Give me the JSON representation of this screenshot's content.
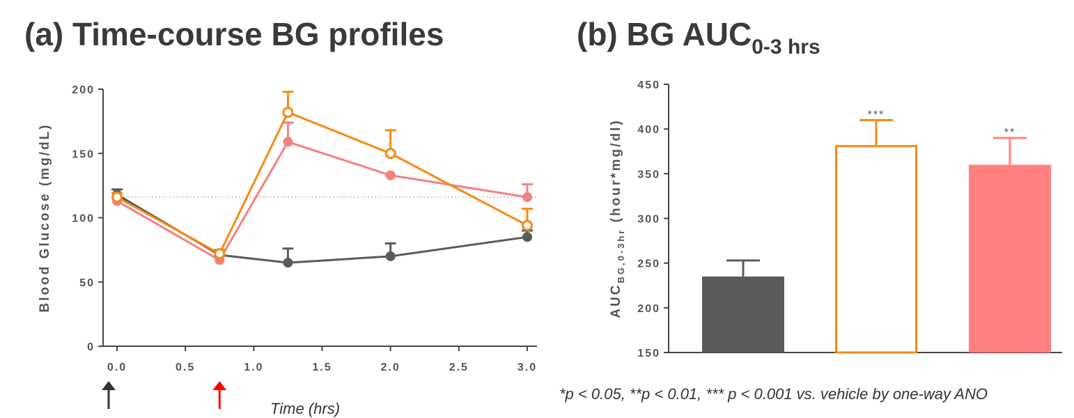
{
  "titles": {
    "a": "(a) Time-course BG profiles",
    "b_main": "(b) BG AUC",
    "b_sub": "0-3 hrs"
  },
  "footnote": "*p < 0.05, **p < 0.01, *** p < 0.001 vs. vehicle by one-way ANO",
  "chart_data": [
    {
      "type": "line",
      "title": "(a) Time-course BG profiles",
      "xlabel": "Time (hrs)",
      "ylabel": "Blood Glucose (mg/dL)",
      "xlim": [
        0,
        3
      ],
      "ylim": [
        0,
        200
      ],
      "xticks": [
        "0.0",
        "0.5",
        "1.0",
        "1.5",
        "2.0",
        "2.5",
        "3.0"
      ],
      "yticks": [
        "0",
        "50",
        "100",
        "150",
        "200"
      ],
      "reference_line_y": 116,
      "series": [
        {
          "color": "#5a5a5a",
          "marker": "filled",
          "x": [
            0,
            0.75,
            1.25,
            2.0,
            3.0
          ],
          "y": [
            118,
            71,
            65,
            70,
            85
          ],
          "err": [
            4,
            4,
            11,
            10,
            5
          ]
        },
        {
          "color": "#f28080",
          "marker": "filled",
          "x": [
            0,
            0.75,
            1.25,
            2.0,
            3.0
          ],
          "y": [
            113,
            67,
            159,
            133,
            116
          ],
          "err": [
            3,
            3,
            15,
            0,
            10
          ]
        },
        {
          "color": "#f58a14",
          "marker": "open",
          "x": [
            0,
            0.75,
            1.25,
            2.0,
            3.0
          ],
          "y": [
            116,
            72,
            182,
            150,
            94
          ],
          "err": [
            3,
            3,
            16,
            18,
            13
          ]
        }
      ],
      "annotations": [
        {
          "type": "arrow",
          "x": 0.0,
          "color": "#333333"
        },
        {
          "type": "arrow",
          "x": 0.75,
          "color": "#ff0000"
        }
      ]
    },
    {
      "type": "bar",
      "title": "(b) BG AUC0-3 hrs",
      "ylabel_main": "AUC",
      "ylabel_sub": "BG,0-3hr",
      "ylabel_unit": "(hour*mg/dl)",
      "ylim": [
        150,
        450
      ],
      "yticks": [
        "150",
        "200",
        "250",
        "300",
        "350",
        "400",
        "450"
      ],
      "bars": [
        {
          "value": 235,
          "err": 18,
          "fill": "#5a5a5a",
          "stroke": "#5a5a5a",
          "sig": ""
        },
        {
          "value": 382,
          "err": 28,
          "fill": "#ffffff",
          "stroke": "#f58a14",
          "sig": "***"
        },
        {
          "value": 360,
          "err": 30,
          "fill": "#ff8080",
          "stroke": "#ff8080",
          "sig": "**"
        }
      ]
    }
  ]
}
